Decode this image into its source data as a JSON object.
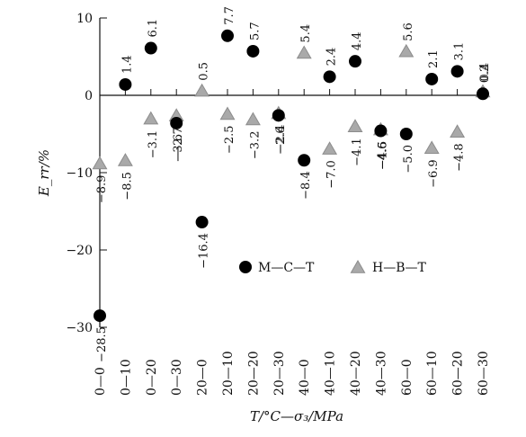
{
  "chart_data": {
    "type": "scatter",
    "xlabel": "T/°C—σ₃/MPa",
    "ylabel": "E_rr/%",
    "ylim": [
      -30,
      10
    ],
    "yticks": [
      -30,
      -20,
      -10,
      0,
      10
    ],
    "categories": [
      "0—0",
      "0—10",
      "0—20",
      "0—30",
      "20—0",
      "20—10",
      "20—20",
      "20—30",
      "40—0",
      "40—10",
      "40—20",
      "40—30",
      "60—0",
      "60—10",
      "60—20",
      "60—30"
    ],
    "legend": {
      "position": "center-right",
      "entries": [
        "M—C—T",
        "H—B—T"
      ]
    },
    "series": [
      {
        "name": "M—C—T",
        "marker": "circle",
        "color": "#000000",
        "values": [
          -28.5,
          1.4,
          6.1,
          -3.6,
          -16.4,
          7.7,
          5.7,
          -2.6,
          -8.4,
          2.4,
          4.4,
          -4.6,
          -5.0,
          2.1,
          3.1,
          0.2
        ],
        "labels": [
          "−28.5",
          "1.4",
          "6.1",
          "−3.6",
          "−16.4",
          "7.7",
          "5.7",
          "−2.6",
          "−8.4",
          "2.4",
          "4.4",
          "−4.6",
          "−5.0",
          "2.1",
          "3.1",
          "0.2"
        ]
      },
      {
        "name": "H—B—T",
        "marker": "triangle",
        "color": "#a9a9a9",
        "values": [
          -8.9,
          -8.5,
          -3.1,
          -2.7,
          0.5,
          -2.5,
          -3.2,
          -2.4,
          5.4,
          -7.0,
          -4.1,
          -4.5,
          5.6,
          -6.9,
          -4.8,
          0.4
        ],
        "labels": [
          "−8.9",
          "−8.5",
          "−3.1",
          "−2.7",
          "0.5",
          "−2.5",
          "−3.2",
          "−2.4",
          "5.4",
          "−7.0",
          "−4.1",
          "−4.5",
          "5.6",
          "−6.9",
          "−4.8",
          "0.4"
        ]
      }
    ]
  }
}
